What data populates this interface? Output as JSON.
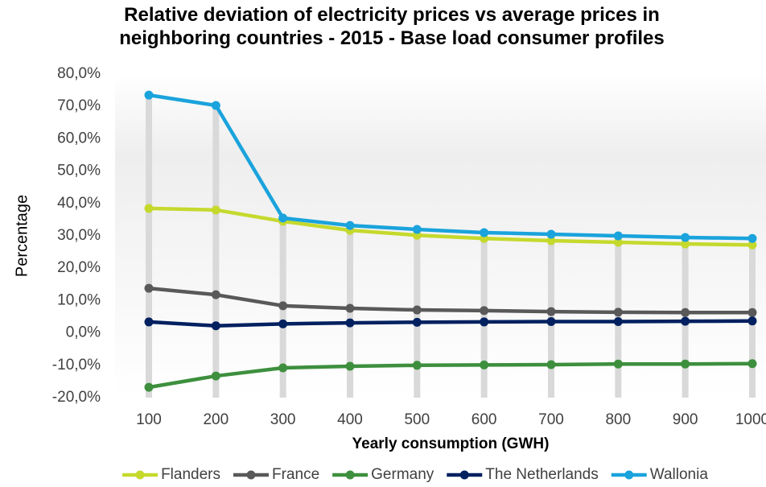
{
  "chart_data": {
    "type": "line",
    "title": "Relative deviation of  electricity prices vs average prices in neighboring countries - 2015 - Base load consumer profiles",
    "xlabel": "Yearly consumption (GWH)",
    "ylabel": "Percentage",
    "categories": [
      "100",
      "200",
      "300",
      "400",
      "500",
      "600",
      "700",
      "800",
      "900",
      "1000"
    ],
    "series": [
      {
        "name": "Flanders",
        "color": "#c5d92d",
        "values": [
          38.5,
          38.0,
          34.5,
          31.7,
          30.2,
          29.2,
          28.5,
          28.0,
          27.5,
          27.2
        ]
      },
      {
        "name": "France",
        "color": "#595959",
        "values": [
          13.8,
          11.8,
          8.4,
          7.6,
          7.1,
          6.9,
          6.6,
          6.4,
          6.3,
          6.3
        ]
      },
      {
        "name": "Germany",
        "color": "#3d8f3d",
        "values": [
          -16.8,
          -13.3,
          -10.8,
          -10.3,
          -10.0,
          -9.9,
          -9.8,
          -9.6,
          -9.6,
          -9.5
        ]
      },
      {
        "name": "The Netherlands",
        "color": "#002060",
        "values": [
          3.4,
          2.2,
          2.8,
          3.1,
          3.3,
          3.4,
          3.5,
          3.5,
          3.6,
          3.7
        ]
      },
      {
        "name": "Wallonia",
        "color": "#1aa3dc",
        "values": [
          73.5,
          70.3,
          35.5,
          33.2,
          32.0,
          31.0,
          30.5,
          30.0,
          29.5,
          29.2
        ]
      }
    ],
    "ylim": [
      -20,
      80
    ],
    "yticks": [
      {
        "value": -20,
        "label": "-20,0%"
      },
      {
        "value": -10,
        "label": "-10,0%"
      },
      {
        "value": 0,
        "label": "0,0%"
      },
      {
        "value": 10,
        "label": "10,0%"
      },
      {
        "value": 20,
        "label": "20,0%"
      },
      {
        "value": 30,
        "label": "30,0%"
      },
      {
        "value": 40,
        "label": "40,0%"
      },
      {
        "value": 50,
        "label": "50,0%"
      },
      {
        "value": 60,
        "label": "60,0%"
      },
      {
        "value": 70,
        "label": "70,0%"
      },
      {
        "value": 80,
        "label": "80,0%"
      }
    ],
    "legend": "bottom",
    "drop_lines": true
  }
}
